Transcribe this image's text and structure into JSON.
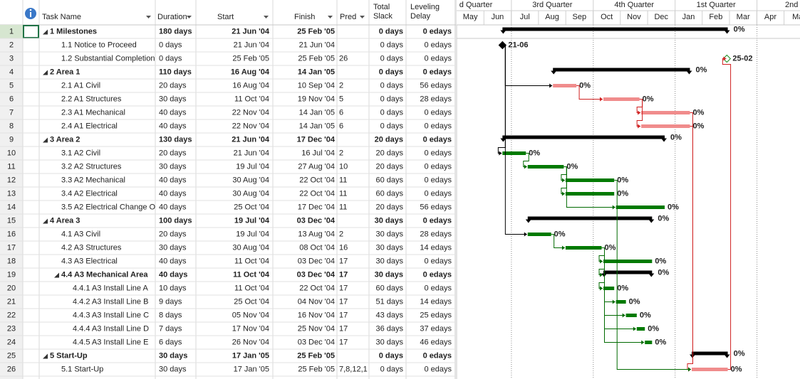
{
  "headers": {
    "name": "Task Name",
    "duration": "Duration",
    "start": "Start",
    "finish": "Finish",
    "pred": "Pred",
    "slack": [
      "Total",
      "Slack"
    ],
    "delay": [
      "Leveling",
      "Delay"
    ]
  },
  "timescale": {
    "quarters": [
      "d Quarter",
      "3rd Quarter",
      "4th Quarter",
      "1st Quarter",
      "2nd Qu"
    ],
    "months": [
      "May",
      "Jun",
      "Jul",
      "Aug",
      "Sep",
      "Oct",
      "Nov",
      "Dec",
      "Jan",
      "Feb",
      "Mar",
      "Apr",
      "Ma"
    ]
  },
  "rows": [
    {
      "id": 1,
      "name": "1 Milestones",
      "duration": "180 days",
      "start": "21 Jun '04",
      "finish": "25 Feb '05",
      "slack": "0 days",
      "delay": "0 edays",
      "level": 1,
      "kind": "summary",
      "bar_label": "0%"
    },
    {
      "id": 2,
      "name": "1.1 Notice to Proceed",
      "duration": "0 days",
      "start": "21 Jun '04",
      "finish": "21 Jun '04",
      "slack": "0 days",
      "delay": "0 edays",
      "level": 2,
      "kind": "milestone",
      "bar_color": "#000000",
      "bar_label": "21-06"
    },
    {
      "id": 3,
      "name": "1.2 Substantial Completion",
      "duration": "0 days",
      "start": "25 Feb '05",
      "finish": "25 Feb '05",
      "pred": "26",
      "slack": "0 days",
      "delay": "0 edays",
      "level": 2,
      "kind": "milestone",
      "bar_color": "#ffffff",
      "bar_label": "25-02"
    },
    {
      "id": 4,
      "name": "2 Area 1",
      "duration": "110 days",
      "start": "16 Aug '04",
      "finish": "14 Jan '05",
      "slack": "0 days",
      "delay": "0 edays",
      "level": 1,
      "kind": "summary",
      "bar_label": "0%"
    },
    {
      "id": 5,
      "name": "2.1 A1 Civil",
      "duration": "20 days",
      "start": "16 Aug '04",
      "finish": "10 Sep '04",
      "pred": "2",
      "slack": "0 days",
      "delay": "56 edays",
      "level": 2,
      "kind": "task",
      "bar_color": "#f08c8c",
      "bar_label": "0%"
    },
    {
      "id": 6,
      "name": "2.2 A1 Structures",
      "duration": "30 days",
      "start": "11 Oct '04",
      "finish": "19 Nov '04",
      "pred": "5",
      "slack": "0 days",
      "delay": "28 edays",
      "level": 2,
      "kind": "task",
      "bar_color": "#f08c8c",
      "bar_label": "0%"
    },
    {
      "id": 7,
      "name": "2.3 A1 Mechanical",
      "duration": "40 days",
      "start": "22 Nov '04",
      "finish": "14 Jan '05",
      "pred": "6",
      "slack": "0 days",
      "delay": "0 edays",
      "level": 2,
      "kind": "task",
      "bar_color": "#f08c8c",
      "bar_label": "0%"
    },
    {
      "id": 8,
      "name": "2.4 A1 Electrical",
      "duration": "40 days",
      "start": "22 Nov '04",
      "finish": "14 Jan '05",
      "pred": "6",
      "slack": "0 days",
      "delay": "0 edays",
      "level": 2,
      "kind": "task",
      "bar_color": "#f08c8c",
      "bar_label": "0%"
    },
    {
      "id": 9,
      "name": "3 Area 2",
      "duration": "130 days",
      "start": "21 Jun '04",
      "finish": "17 Dec '04",
      "slack": "20 days",
      "delay": "0 edays",
      "level": 1,
      "kind": "summary",
      "bar_label": "0%"
    },
    {
      "id": 10,
      "name": "3.1 A2 Civil",
      "duration": "20 days",
      "start": "21 Jun '04",
      "finish": "16 Jul '04",
      "pred": "2",
      "slack": "20 days",
      "delay": "0 edays",
      "level": 2,
      "kind": "task",
      "bar_color": "#007a00",
      "bar_label": "0%"
    },
    {
      "id": 11,
      "name": "3.2 A2 Structures",
      "duration": "30 days",
      "start": "19 Jul '04",
      "finish": "27 Aug '04",
      "pred": "10",
      "slack": "20 days",
      "delay": "0 edays",
      "level": 2,
      "kind": "task",
      "bar_color": "#007a00",
      "bar_label": "0%"
    },
    {
      "id": 12,
      "name": "3.3 A2 Mechanical",
      "duration": "40 days",
      "start": "30 Aug '04",
      "finish": "22 Oct '04",
      "pred": "11",
      "slack": "60 days",
      "delay": "0 edays",
      "level": 2,
      "kind": "task",
      "bar_color": "#007a00",
      "bar_label": "0%"
    },
    {
      "id": 13,
      "name": "3.4 A2 Electrical",
      "duration": "40 days",
      "start": "30 Aug '04",
      "finish": "22 Oct '04",
      "pred": "11",
      "slack": "60 days",
      "delay": "0 edays",
      "level": 2,
      "kind": "task",
      "bar_color": "#007a00",
      "bar_label": "0%"
    },
    {
      "id": 14,
      "name": "3.5 A2 Electrical Change O",
      "duration": "40 days",
      "start": "25 Oct '04",
      "finish": "17 Dec '04",
      "pred": "11",
      "slack": "20 days",
      "delay": "56 edays",
      "level": 2,
      "kind": "task",
      "bar_color": "#007a00",
      "bar_label": "0%"
    },
    {
      "id": 15,
      "name": "4 Area 3",
      "duration": "100 days",
      "start": "19 Jul '04",
      "finish": "03 Dec '04",
      "slack": "30 days",
      "delay": "0 edays",
      "level": 1,
      "kind": "summary",
      "bar_label": "0%"
    },
    {
      "id": 16,
      "name": "4.1 A3 Civil",
      "duration": "20 days",
      "start": "19 Jul '04",
      "finish": "13 Aug '04",
      "pred": "2",
      "slack": "30 days",
      "delay": "28 edays",
      "level": 2,
      "kind": "task",
      "bar_color": "#007a00",
      "bar_label": "0%"
    },
    {
      "id": 17,
      "name": "4.2 A3 Structures",
      "duration": "30 days",
      "start": "30 Aug '04",
      "finish": "08 Oct '04",
      "pred": "16",
      "slack": "30 days",
      "delay": "14 edays",
      "level": 2,
      "kind": "task",
      "bar_color": "#007a00",
      "bar_label": "0%"
    },
    {
      "id": 18,
      "name": "4.3 A3 Electrical",
      "duration": "40 days",
      "start": "11 Oct '04",
      "finish": "03 Dec '04",
      "pred": "17",
      "slack": "30 days",
      "delay": "0 edays",
      "level": 2,
      "kind": "task",
      "bar_color": "#007a00",
      "bar_label": "0%"
    },
    {
      "id": 19,
      "name": "4.4 A3 Mechanical Area",
      "duration": "40 days",
      "start": "11 Oct '04",
      "finish": "03 Dec '04",
      "pred": "17",
      "slack": "30 days",
      "delay": "0 edays",
      "level": 3,
      "kind": "summary",
      "bar_label": "0%"
    },
    {
      "id": 20,
      "name": "4.4.1 A3 Install Line A",
      "duration": "10 days",
      "start": "11 Oct '04",
      "finish": "22 Oct '04",
      "pred": "17",
      "slack": "60 days",
      "delay": "0 edays",
      "level": 4,
      "kind": "task",
      "bar_color": "#007a00",
      "bar_label": "0%"
    },
    {
      "id": 21,
      "name": "4.4.2 A3 Install Line B",
      "duration": "9 days",
      "start": "25 Oct '04",
      "finish": "04 Nov '04",
      "pred": "17",
      "slack": "51 days",
      "delay": "14 edays",
      "level": 4,
      "kind": "task",
      "bar_color": "#007a00",
      "bar_label": "0%"
    },
    {
      "id": 22,
      "name": "4.4.3 A3 Install Line C",
      "duration": "8 days",
      "start": "05 Nov '04",
      "finish": "16 Nov '04",
      "pred": "17",
      "slack": "43 days",
      "delay": "25 edays",
      "level": 4,
      "kind": "task",
      "bar_color": "#007a00",
      "bar_label": "0%"
    },
    {
      "id": 23,
      "name": "4.4.4 A3 Install Line D",
      "duration": "7 days",
      "start": "17 Nov '04",
      "finish": "25 Nov '04",
      "pred": "17",
      "slack": "36 days",
      "delay": "37 edays",
      "level": 4,
      "kind": "task",
      "bar_color": "#007a00",
      "bar_label": "0%"
    },
    {
      "id": 24,
      "name": "4.4.5 A3 Install Line E",
      "duration": "6 days",
      "start": "26 Nov '04",
      "finish": "03 Dec '04",
      "pred": "17",
      "slack": "30 days",
      "delay": "46 edays",
      "level": 4,
      "kind": "task",
      "bar_color": "#007a00",
      "bar_label": "0%"
    },
    {
      "id": 25,
      "name": "5 Start-Up",
      "duration": "30 days",
      "start": "17 Jan '05",
      "finish": "25 Feb '05",
      "slack": "0 days",
      "delay": "0 edays",
      "level": 1,
      "kind": "summary",
      "bar_label": "0%"
    },
    {
      "id": 26,
      "name": "5.1 Start-Up",
      "duration": "30 days",
      "start": "17 Jan '05",
      "finish": "25 Feb '05",
      "pred": "7,8,12,1",
      "slack": "0 days",
      "delay": "0 edays",
      "level": 2,
      "kind": "task",
      "bar_color": "#f08c8c",
      "bar_label": "0%"
    }
  ]
}
